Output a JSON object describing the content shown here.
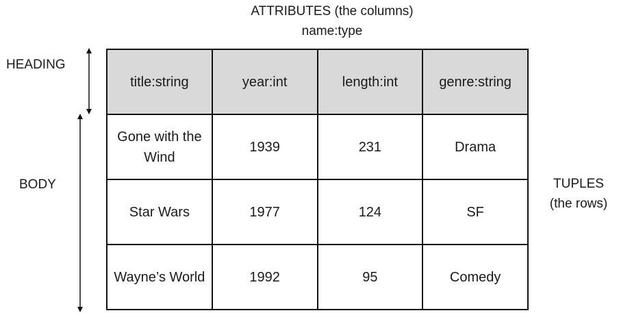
{
  "top_label": {
    "line1": "ATTRIBUTES (the columns)",
    "line2": "name:type"
  },
  "side_labels": {
    "heading": "HEADING",
    "body": "BODY",
    "tuples_line1": "TUPLES",
    "tuples_line2": "(the rows)"
  },
  "table": {
    "columns": [
      "title:string",
      "year:int",
      "length:int",
      "genre:string"
    ],
    "rows": [
      [
        "Gone with the Wind",
        "1939",
        "231",
        "Drama"
      ],
      [
        "Star Wars",
        "1977",
        "124",
        "SF"
      ],
      [
        "Wayne’s World",
        "1992",
        "95",
        "Comedy"
      ]
    ]
  },
  "colors": {
    "heading_fill": "#d9d9d9",
    "border": "#111111"
  }
}
